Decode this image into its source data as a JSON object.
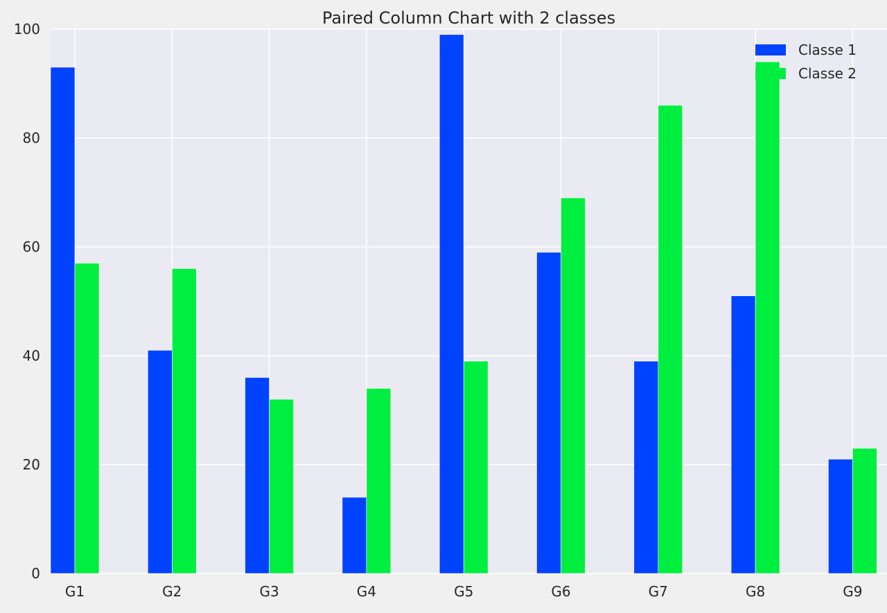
{
  "chart_data": {
    "type": "bar",
    "title": "Paired Column Chart with 2 classes",
    "xlabel": "",
    "ylabel": "",
    "categories": [
      "G1",
      "G2",
      "G3",
      "G4",
      "G5",
      "G6",
      "G7",
      "G8",
      "G9"
    ],
    "series": [
      {
        "name": "Classe 1",
        "color": "#0043ff",
        "values": [
          93,
          41,
          36,
          14,
          99,
          59,
          39,
          51,
          21
        ]
      },
      {
        "name": "Classe 2",
        "color": "#00ee3f",
        "values": [
          57,
          56,
          32,
          34,
          39,
          69,
          86,
          94,
          23
        ]
      }
    ],
    "ylim": [
      0,
      100
    ],
    "yticks": [
      0,
      20,
      40,
      60,
      80,
      100
    ],
    "grid": true,
    "legend_position": "top-right",
    "colors": {
      "background": "#f0f0f0",
      "plot_background": "#eaeaf2",
      "grid": "#ffffff",
      "text": "#262626"
    }
  }
}
